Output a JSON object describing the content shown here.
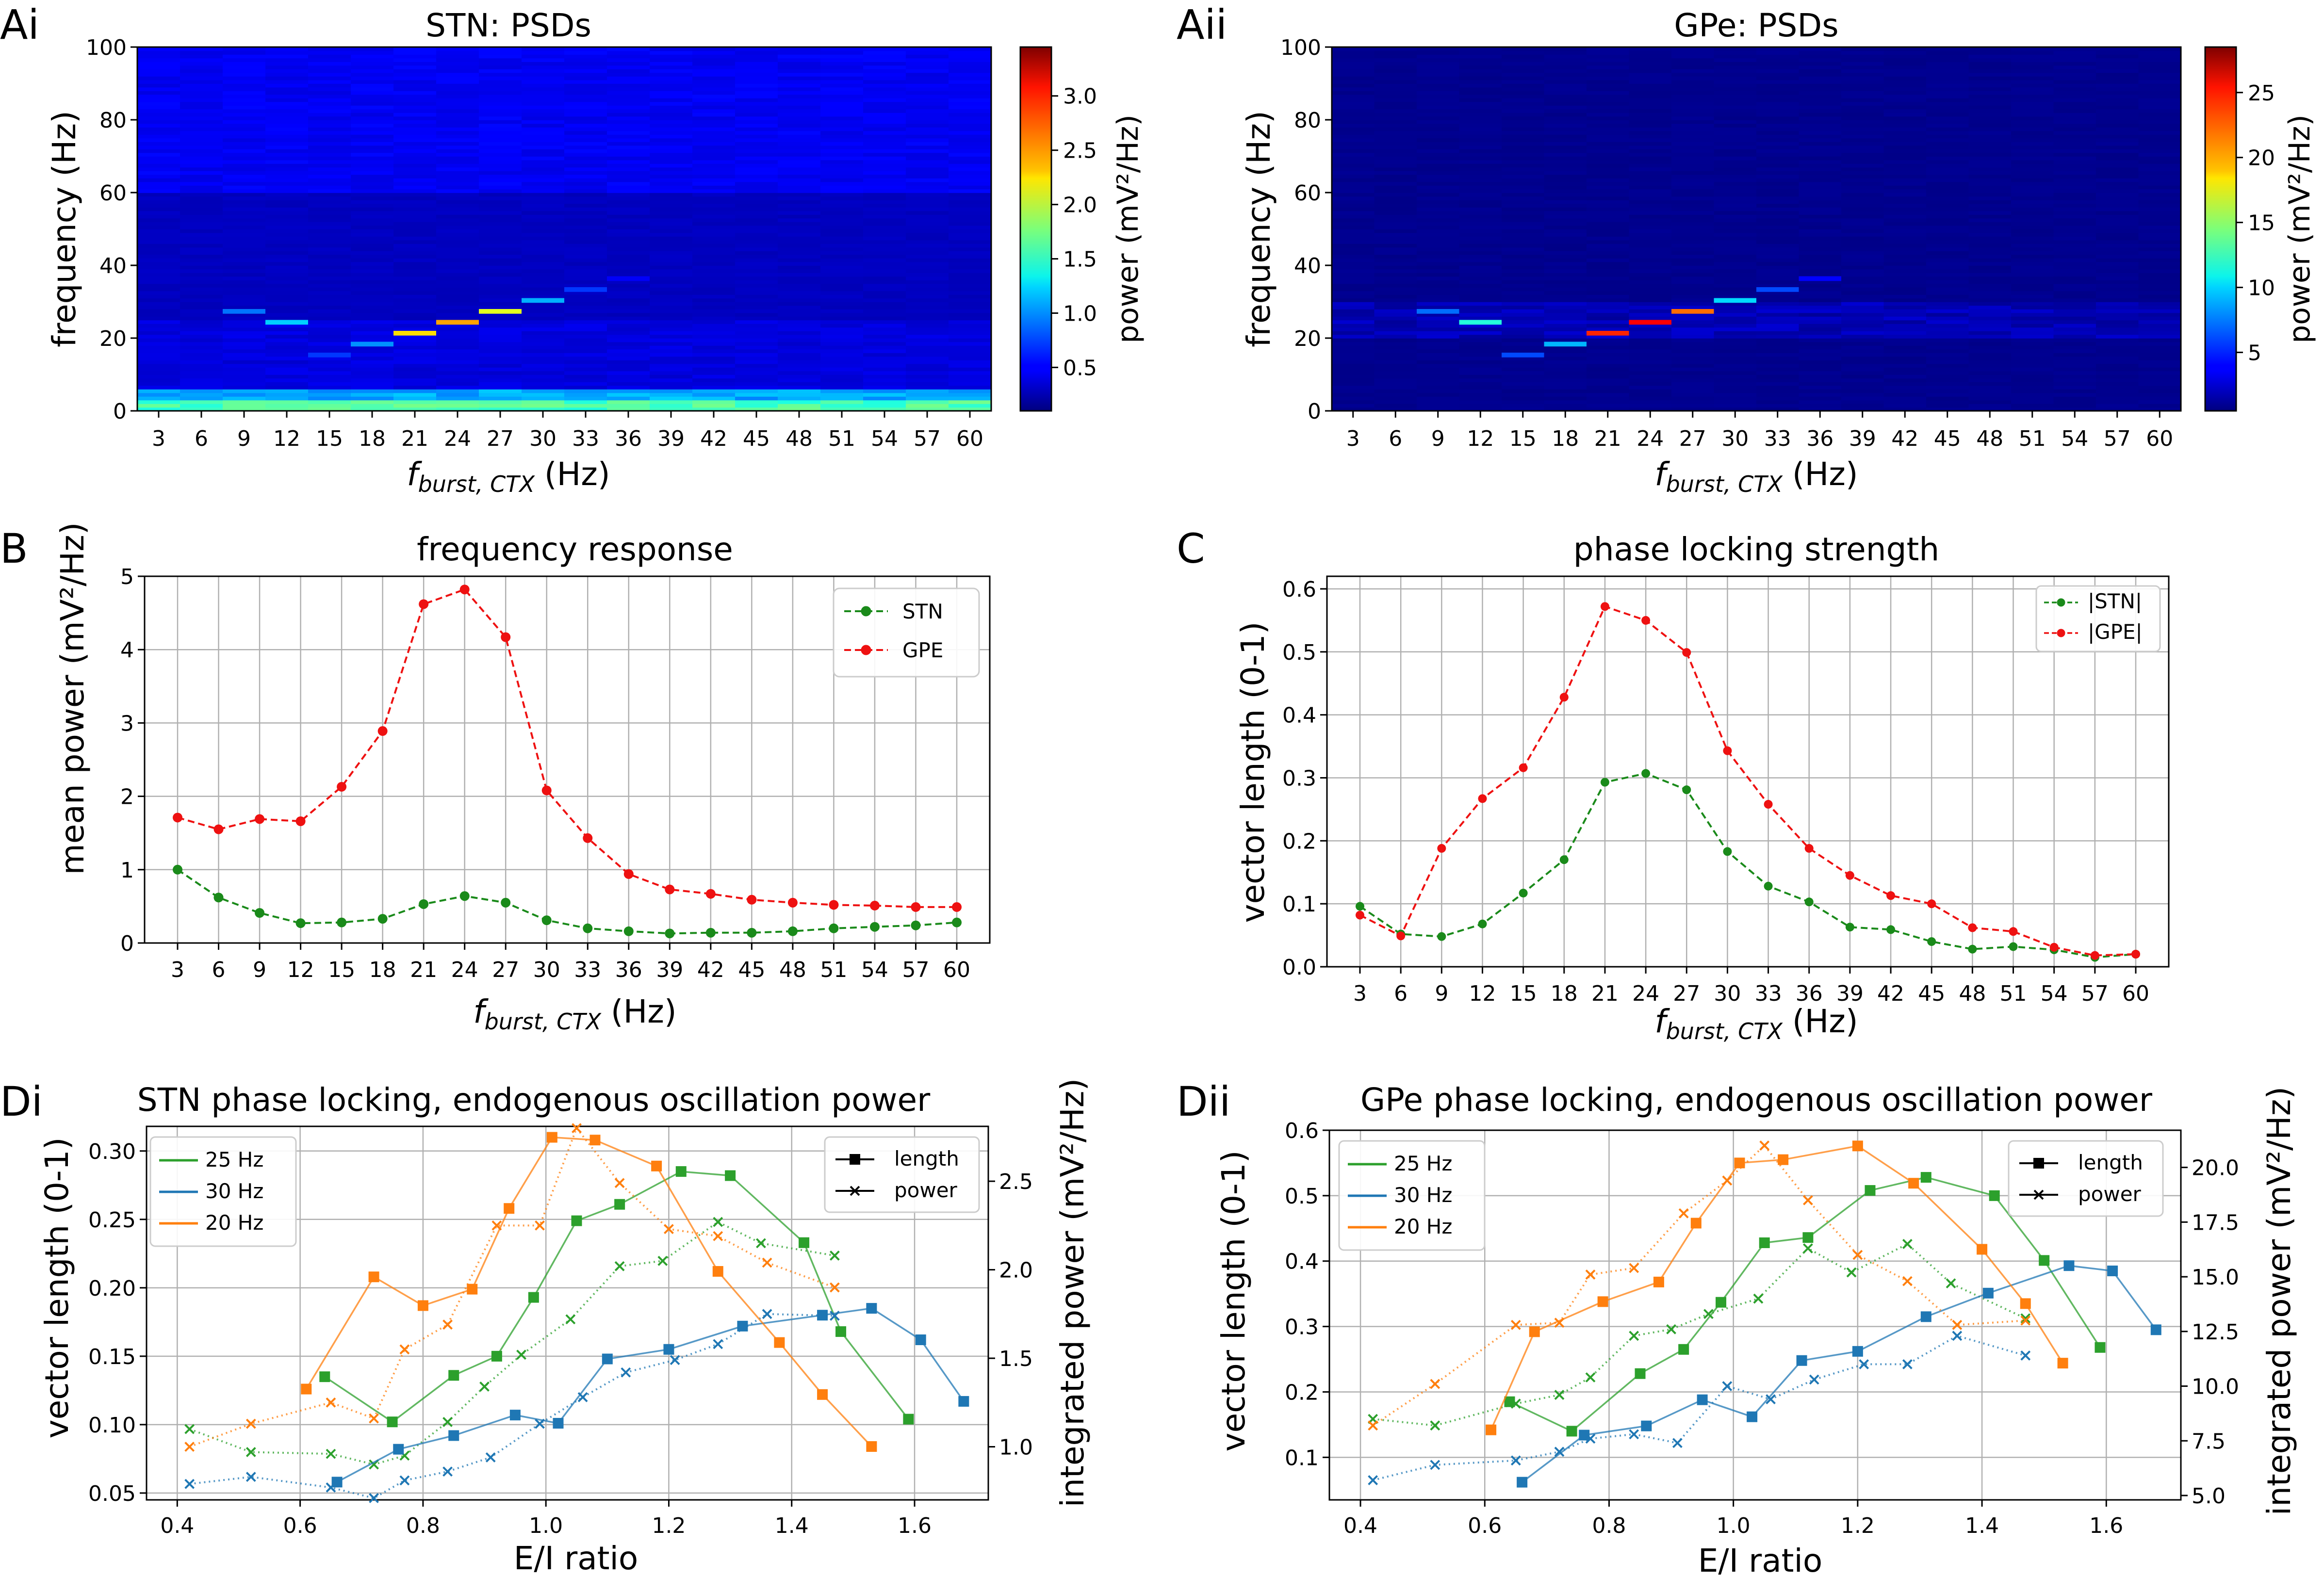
{
  "panels": {
    "Ai": {
      "label": "Ai",
      "title": "STN: PSDs",
      "ylabel": "frequency (Hz)",
      "xlabel_main": "f",
      "xlabel_sub": "burst, CTX",
      "xlabel_unit": "(Hz)",
      "cbar_label": "power (mV²/Hz)",
      "cbar_ticks": [
        "0.5",
        "1.0",
        "1.5",
        "2.0",
        "2.5",
        "3.0"
      ],
      "cbar_tick_values": [
        0.5,
        1.0,
        1.5,
        2.0,
        2.5,
        3.0
      ],
      "cbar_range": [
        0.1,
        3.45
      ],
      "yticks": [
        "0",
        "20",
        "40",
        "60",
        "80",
        "100"
      ],
      "xticks": [
        "3",
        "6",
        "9",
        "12",
        "15",
        "18",
        "21",
        "24",
        "27",
        "30",
        "33",
        "36",
        "39",
        "42",
        "45",
        "48",
        "51",
        "54",
        "57",
        "60"
      ]
    },
    "Aii": {
      "label": "Aii",
      "title": "GPe: PSDs",
      "ylabel": "frequency (Hz)",
      "xlabel_main": "f",
      "xlabel_sub": "burst, CTX",
      "xlabel_unit": "(Hz)",
      "cbar_label": "power (mV²/Hz)",
      "cbar_ticks": [
        "5",
        "10",
        "15",
        "20",
        "25"
      ],
      "cbar_tick_values": [
        5,
        10,
        15,
        20,
        25
      ],
      "cbar_range": [
        0.5,
        28.5
      ],
      "yticks": [
        "0",
        "20",
        "40",
        "60",
        "80",
        "100"
      ],
      "xticks": [
        "3",
        "6",
        "9",
        "12",
        "15",
        "18",
        "21",
        "24",
        "27",
        "30",
        "33",
        "36",
        "39",
        "42",
        "45",
        "48",
        "51",
        "54",
        "57",
        "60"
      ]
    },
    "B": {
      "label": "B",
      "title": "frequency response",
      "ylabel": "mean power (mV²/Hz)",
      "xlabel_main": "f",
      "xlabel_sub": "burst, CTX",
      "xlabel_unit": "(Hz)",
      "yticks": [
        "0",
        "1",
        "2",
        "3",
        "4",
        "5"
      ],
      "xticks": [
        "3",
        "6",
        "9",
        "12",
        "15",
        "18",
        "21",
        "24",
        "27",
        "30",
        "33",
        "36",
        "39",
        "42",
        "45",
        "48",
        "51",
        "54",
        "57",
        "60"
      ],
      "legend": [
        "STN",
        "GPE"
      ]
    },
    "C": {
      "label": "C",
      "title": "phase locking strength",
      "ylabel": "vector length (0-1)",
      "xlabel_main": "f",
      "xlabel_sub": "burst, CTX",
      "xlabel_unit": "(Hz)",
      "yticks": [
        "0.0",
        "0.1",
        "0.2",
        "0.3",
        "0.4",
        "0.5",
        "0.6"
      ],
      "xticks": [
        "3",
        "6",
        "9",
        "12",
        "15",
        "18",
        "21",
        "24",
        "27",
        "30",
        "33",
        "36",
        "39",
        "42",
        "45",
        "48",
        "51",
        "54",
        "57",
        "60"
      ],
      "legend": [
        "|STN|",
        "|GPE|"
      ]
    },
    "Di": {
      "label": "Di",
      "title": "STN phase locking, endogenous oscillation power",
      "ylabel": "vector length (0-1)",
      "ylabel_right": "integrated power (mV²/Hz)",
      "xlabel": "E/I ratio",
      "xticks": [
        "0.4",
        "0.6",
        "0.8",
        "1.0",
        "1.2",
        "1.4",
        "1.6"
      ],
      "yticks": [
        "0.05",
        "0.10",
        "0.15",
        "0.20",
        "0.25",
        "0.30"
      ],
      "yticks_right": [
        "1.0",
        "1.5",
        "2.0",
        "2.5"
      ],
      "legend_series": [
        "25 Hz",
        "30 Hz",
        "20 Hz"
      ],
      "legend_markers": [
        "length",
        "power"
      ]
    },
    "Dii": {
      "label": "Dii",
      "title": "GPe phase locking, endogenous oscillation power",
      "ylabel": "vector length (0-1)",
      "ylabel_right": "integrated power (mV²/Hz)",
      "xlabel": "E/I ratio",
      "xticks": [
        "0.4",
        "0.6",
        "0.8",
        "1.0",
        "1.2",
        "1.4",
        "1.6"
      ],
      "yticks": [
        "0.1",
        "0.2",
        "0.3",
        "0.4",
        "0.5",
        "0.6"
      ],
      "yticks_right": [
        "5.0",
        "7.5",
        "10.0",
        "12.5",
        "15.0",
        "17.5",
        "20.0"
      ],
      "legend_series": [
        "25 Hz",
        "30 Hz",
        "20 Hz"
      ],
      "legend_markers": [
        "length",
        "power"
      ]
    }
  },
  "colors": {
    "stn": "#1a8a1a",
    "gpe": "#ee1111",
    "s25": "#2ca02c",
    "s30": "#1f77b4",
    "s20": "#ff7f0e"
  },
  "chart_data": [
    {
      "id": "Ai",
      "type": "heatmap",
      "x": [
        3,
        6,
        9,
        12,
        15,
        18,
        21,
        24,
        27,
        30,
        33,
        36,
        39,
        42,
        45,
        48,
        51,
        54,
        57,
        60
      ],
      "y_range": [
        0,
        100
      ],
      "value_range": [
        0.1,
        3.45
      ],
      "colormap": "jet",
      "peaks": [
        {
          "x": 9,
          "y": 27,
          "v": 0.9
        },
        {
          "x": 12,
          "y": 24,
          "v": 1.2
        },
        {
          "x": 15,
          "y": 15,
          "v": 0.7
        },
        {
          "x": 18,
          "y": 18,
          "v": 1.0
        },
        {
          "x": 21,
          "y": 21,
          "v": 2.3
        },
        {
          "x": 24,
          "y": 24,
          "v": 2.5
        },
        {
          "x": 27,
          "y": 27,
          "v": 2.1
        },
        {
          "x": 30,
          "y": 30,
          "v": 1.1
        },
        {
          "x": 33,
          "y": 33,
          "v": 0.7
        },
        {
          "x": 36,
          "y": 36,
          "v": 0.5
        }
      ]
    },
    {
      "id": "Aii",
      "type": "heatmap",
      "x": [
        3,
        6,
        9,
        12,
        15,
        18,
        21,
        24,
        27,
        30,
        33,
        36,
        39,
        42,
        45,
        48,
        51,
        54,
        57,
        60
      ],
      "y_range": [
        0,
        100
      ],
      "value_range": [
        0.5,
        28.5
      ],
      "colormap": "jet",
      "peaks": [
        {
          "x": 9,
          "y": 27,
          "v": 7
        },
        {
          "x": 12,
          "y": 24,
          "v": 12
        },
        {
          "x": 15,
          "y": 15,
          "v": 6
        },
        {
          "x": 18,
          "y": 18,
          "v": 9
        },
        {
          "x": 21,
          "y": 21,
          "v": 24
        },
        {
          "x": 24,
          "y": 24,
          "v": 25
        },
        {
          "x": 27,
          "y": 27,
          "v": 22
        },
        {
          "x": 30,
          "y": 30,
          "v": 10
        },
        {
          "x": 33,
          "y": 33,
          "v": 6
        },
        {
          "x": 36,
          "y": 36,
          "v": 4
        }
      ]
    },
    {
      "id": "B",
      "type": "line",
      "x": [
        3,
        6,
        9,
        12,
        15,
        18,
        21,
        24,
        27,
        30,
        33,
        36,
        39,
        42,
        45,
        48,
        51,
        54,
        57,
        60
      ],
      "ylim": [
        0,
        5
      ],
      "series": [
        {
          "name": "STN",
          "values": [
            1.0,
            0.62,
            0.41,
            0.27,
            0.28,
            0.33,
            0.53,
            0.64,
            0.55,
            0.31,
            0.2,
            0.16,
            0.13,
            0.14,
            0.14,
            0.16,
            0.2,
            0.22,
            0.24,
            0.28
          ]
        },
        {
          "name": "GPE",
          "values": [
            1.71,
            1.55,
            1.69,
            1.66,
            2.13,
            2.89,
            4.62,
            4.82,
            4.17,
            2.08,
            1.43,
            0.94,
            0.73,
            0.67,
            0.59,
            0.55,
            0.52,
            0.51,
            0.49,
            0.49
          ]
        }
      ]
    },
    {
      "id": "C",
      "type": "line",
      "x": [
        3,
        6,
        9,
        12,
        15,
        18,
        21,
        24,
        27,
        30,
        33,
        36,
        39,
        42,
        45,
        48,
        51,
        54,
        57,
        60
      ],
      "ylim": [
        0,
        0.62
      ],
      "series": [
        {
          "name": "|STN|",
          "values": [
            0.096,
            0.052,
            0.048,
            0.068,
            0.117,
            0.17,
            0.293,
            0.307,
            0.281,
            0.183,
            0.128,
            0.103,
            0.063,
            0.059,
            0.04,
            0.028,
            0.032,
            0.027,
            0.015,
            0.02
          ]
        },
        {
          "name": "|GPE|",
          "values": [
            0.082,
            0.049,
            0.188,
            0.267,
            0.316,
            0.428,
            0.572,
            0.55,
            0.499,
            0.343,
            0.258,
            0.188,
            0.145,
            0.113,
            0.1,
            0.062,
            0.056,
            0.031,
            0.018,
            0.02
          ]
        }
      ]
    },
    {
      "id": "Di",
      "type": "line",
      "xlim": [
        0.35,
        1.72
      ],
      "ylim_left": [
        0.045,
        0.318
      ],
      "ylim_right": [
        0.7,
        2.81
      ],
      "series": [
        {
          "name": "25 Hz",
          "marker": "length",
          "x": [
            0.64,
            0.75,
            0.85,
            0.92,
            0.98,
            1.05,
            1.12,
            1.22,
            1.3,
            1.42,
            1.48,
            1.59
          ],
          "values": [
            0.135,
            0.102,
            0.136,
            0.15,
            0.193,
            0.249,
            0.261,
            0.285,
            0.282,
            0.233,
            0.168,
            0.104
          ]
        },
        {
          "name": "25 Hz",
          "marker": "power",
          "x": [
            0.42,
            0.52,
            0.65,
            0.72,
            0.77,
            0.84,
            0.9,
            0.96,
            1.04,
            1.12,
            1.19,
            1.28,
            1.35,
            1.47
          ],
          "values": [
            1.1,
            0.97,
            0.96,
            0.9,
            0.95,
            1.14,
            1.34,
            1.52,
            1.72,
            2.02,
            2.05,
            2.27,
            2.15,
            2.08
          ]
        },
        {
          "name": "30 Hz",
          "marker": "length",
          "x": [
            0.66,
            0.76,
            0.85,
            0.95,
            1.02,
            1.1,
            1.2,
            1.32,
            1.45,
            1.53,
            1.61,
            1.68
          ],
          "values": [
            0.058,
            0.082,
            0.092,
            0.107,
            0.101,
            0.148,
            0.155,
            0.172,
            0.18,
            0.185,
            0.162,
            0.117
          ]
        },
        {
          "name": "30 Hz",
          "marker": "power",
          "x": [
            0.42,
            0.52,
            0.65,
            0.72,
            0.77,
            0.84,
            0.91,
            0.99,
            1.06,
            1.13,
            1.21,
            1.28,
            1.36,
            1.47
          ],
          "values": [
            0.79,
            0.83,
            0.77,
            0.71,
            0.81,
            0.86,
            0.94,
            1.13,
            1.28,
            1.42,
            1.49,
            1.58,
            1.75,
            1.74
          ]
        },
        {
          "name": "20 Hz",
          "marker": "length",
          "x": [
            0.61,
            0.72,
            0.8,
            0.88,
            0.94,
            1.01,
            1.08,
            1.18,
            1.28,
            1.38,
            1.45,
            1.53
          ],
          "values": [
            0.126,
            0.208,
            0.187,
            0.199,
            0.258,
            0.31,
            0.308,
            0.289,
            0.212,
            0.16,
            0.122,
            0.084
          ]
        },
        {
          "name": "20 Hz",
          "marker": "power",
          "x": [
            0.42,
            0.52,
            0.65,
            0.72,
            0.77,
            0.84,
            0.92,
            0.99,
            1.05,
            1.12,
            1.2,
            1.28,
            1.36,
            1.47
          ],
          "values": [
            1.0,
            1.13,
            1.25,
            1.16,
            1.55,
            1.69,
            2.25,
            2.25,
            2.8,
            2.49,
            2.23,
            2.19,
            2.04,
            1.9
          ]
        }
      ]
    },
    {
      "id": "Dii",
      "type": "line",
      "xlim": [
        0.35,
        1.72
      ],
      "ylim_left": [
        0.035,
        0.6
      ],
      "ylim_right": [
        4.8,
        21.7
      ],
      "series": [
        {
          "name": "25 Hz",
          "marker": "length",
          "x": [
            0.64,
            0.74,
            0.85,
            0.92,
            0.98,
            1.05,
            1.12,
            1.22,
            1.31,
            1.42,
            1.5,
            1.59
          ],
          "values": [
            0.185,
            0.14,
            0.228,
            0.265,
            0.337,
            0.428,
            0.436,
            0.508,
            0.528,
            0.5,
            0.401,
            0.268
          ]
        },
        {
          "name": "25 Hz",
          "marker": "power",
          "x": [
            0.42,
            0.52,
            0.65,
            0.72,
            0.77,
            0.84,
            0.9,
            0.96,
            1.04,
            1.12,
            1.19,
            1.28,
            1.35,
            1.47
          ],
          "values": [
            8.5,
            8.2,
            9.2,
            9.6,
            10.4,
            12.3,
            12.6,
            13.3,
            14.0,
            16.3,
            15.2,
            16.5,
            14.7,
            13.1
          ]
        },
        {
          "name": "30 Hz",
          "marker": "length",
          "x": [
            0.66,
            0.76,
            0.86,
            0.95,
            1.03,
            1.11,
            1.2,
            1.31,
            1.41,
            1.54,
            1.61,
            1.68
          ],
          "values": [
            0.062,
            0.134,
            0.148,
            0.188,
            0.162,
            0.248,
            0.262,
            0.315,
            0.351,
            0.393,
            0.385,
            0.295
          ]
        },
        {
          "name": "30 Hz",
          "marker": "power",
          "x": [
            0.42,
            0.52,
            0.65,
            0.72,
            0.77,
            0.84,
            0.91,
            0.99,
            1.06,
            1.13,
            1.21,
            1.28,
            1.36,
            1.47
          ],
          "values": [
            5.7,
            6.4,
            6.6,
            7.0,
            7.6,
            7.8,
            7.4,
            10.0,
            9.4,
            10.3,
            11.0,
            11.0,
            12.3,
            11.4
          ]
        },
        {
          "name": "20 Hz",
          "marker": "length",
          "x": [
            0.61,
            0.68,
            0.79,
            0.88,
            0.94,
            1.01,
            1.08,
            1.2,
            1.29,
            1.4,
            1.47,
            1.53
          ],
          "values": [
            0.142,
            0.292,
            0.338,
            0.368,
            0.458,
            0.55,
            0.555,
            0.576,
            0.519,
            0.418,
            0.335,
            0.244
          ]
        },
        {
          "name": "20 Hz",
          "marker": "power",
          "x": [
            0.42,
            0.52,
            0.65,
            0.72,
            0.77,
            0.84,
            0.92,
            0.99,
            1.05,
            1.12,
            1.2,
            1.28,
            1.36,
            1.47
          ],
          "values": [
            8.2,
            10.1,
            12.8,
            12.9,
            15.1,
            15.4,
            17.9,
            19.4,
            21.0,
            18.5,
            16.0,
            14.8,
            12.8,
            13.0
          ]
        }
      ]
    }
  ]
}
